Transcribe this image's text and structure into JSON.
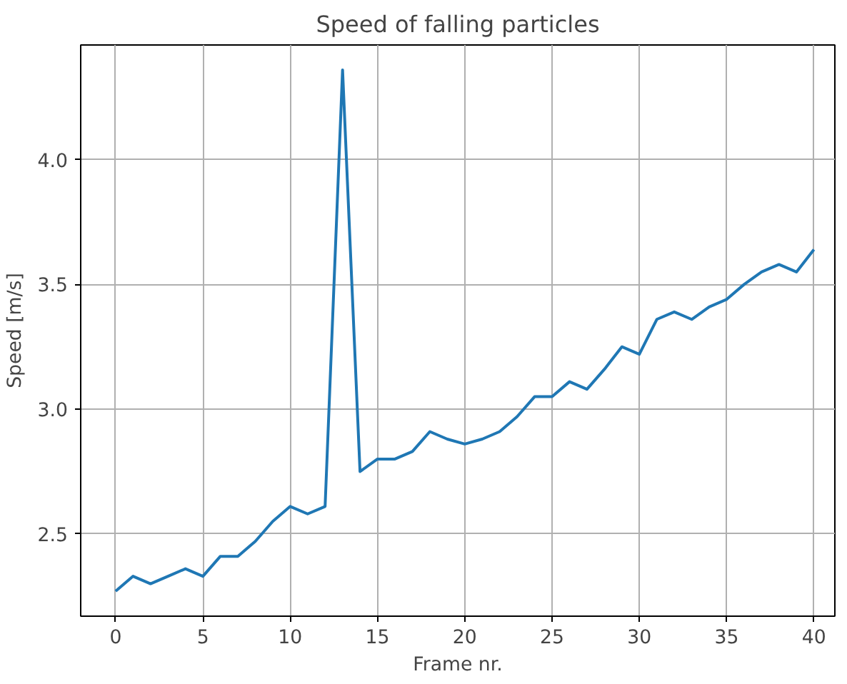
{
  "chart_data": {
    "type": "line",
    "title": "Speed of falling particles",
    "xlabel": "Frame nr.",
    "ylabel": "Speed [m/s]",
    "x": [
      0,
      1,
      2,
      3,
      4,
      5,
      6,
      7,
      8,
      9,
      10,
      11,
      12,
      13,
      14,
      15,
      16,
      17,
      18,
      19,
      20,
      21,
      22,
      23,
      24,
      25,
      26,
      27,
      28,
      29,
      30,
      31,
      32,
      33,
      34,
      35,
      36,
      37,
      38,
      39,
      40
    ],
    "series": [
      {
        "color": "#1f77b4",
        "values": [
          2.27,
          2.33,
          2.3,
          2.33,
          2.36,
          2.33,
          2.41,
          2.41,
          2.47,
          2.55,
          2.61,
          2.58,
          2.61,
          4.36,
          2.75,
          2.8,
          2.8,
          2.83,
          2.91,
          2.88,
          2.86,
          2.88,
          2.91,
          2.97,
          3.05,
          3.05,
          3.11,
          3.08,
          3.16,
          3.25,
          3.22,
          3.36,
          3.39,
          3.36,
          3.41,
          3.44,
          3.5,
          3.55,
          3.58,
          3.55,
          3.64
        ]
      }
    ],
    "xlim": [
      -2,
      41.2
    ],
    "ylim": [
      2.17,
      4.46
    ],
    "xticks": [
      0,
      5,
      10,
      15,
      20,
      25,
      30,
      35,
      40
    ],
    "yticks": [
      {
        "value": 2.5,
        "label": "2.5"
      },
      {
        "value": 3.0,
        "label": "3.0"
      },
      {
        "value": 3.5,
        "label": "3.5"
      },
      {
        "value": 4.0,
        "label": "4.0"
      }
    ],
    "grid": true,
    "marker": "none",
    "line_style": "solid"
  }
}
